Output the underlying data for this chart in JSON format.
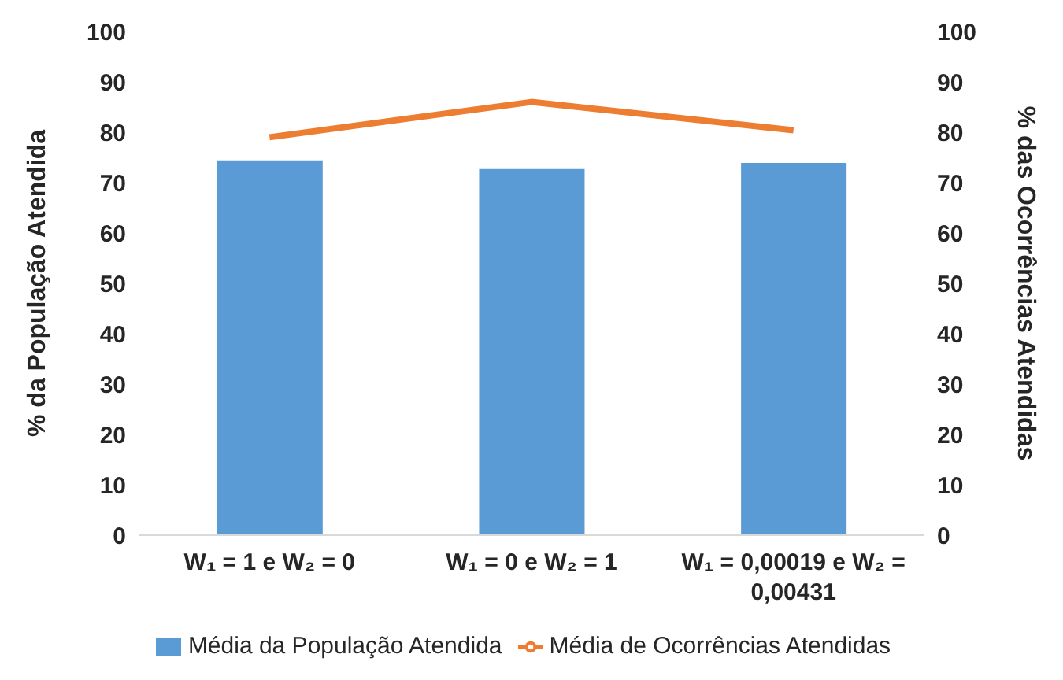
{
  "chart_data": {
    "type": "bar",
    "categories": [
      "W₁ = 1 e W₂ = 0",
      "W₁ = 0 e W₂ = 1",
      "W₁ = 0,00019 e W₂ = 0,00431"
    ],
    "series": [
      {
        "name": "Média da População Atendida",
        "color": "#5b9bd5",
        "values": [
          74.4,
          72.7,
          73.9
        ]
      },
      {
        "name": "Média de Ocorrências Atendidas",
        "type": "line",
        "axis": "y2",
        "color": "#ed7d31",
        "values": [
          79.0,
          86.0,
          80.4
        ]
      }
    ],
    "ylabel": "% da População Atendida",
    "y2label": "% das Ocorrências Atendidas",
    "ylim": [
      0,
      100
    ],
    "yticks": [
      0,
      10,
      20,
      30,
      40,
      50,
      60,
      70,
      80,
      90,
      100
    ],
    "y2lim": [
      0,
      100
    ],
    "y2ticks": [
      0,
      10,
      20,
      30,
      40,
      50,
      60,
      70,
      80,
      90,
      100
    ],
    "legend": "bottom",
    "grid": false,
    "marker": "none"
  }
}
